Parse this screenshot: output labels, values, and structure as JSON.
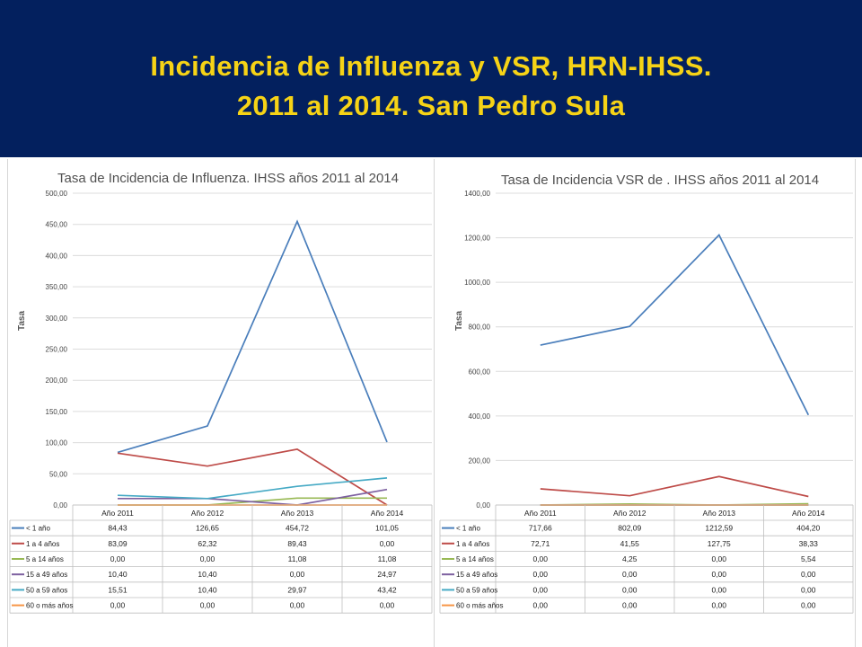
{
  "header": {
    "title_line1": "Incidencia de Influenza y VSR, HRN-IHSS.",
    "title_line2": "2011 al 2014. San Pedro Sula"
  },
  "colors": {
    "banner_bg": "#03205e",
    "title_text": "#f6d316"
  },
  "chart_data": [
    {
      "type": "line",
      "title": "Tasa de Incidencia de Influenza. IHSS años 2011 al 2014",
      "ylabel": "Tasa",
      "xlabel": "",
      "ylim": [
        0,
        500
      ],
      "yticks": [
        "0,00",
        "50,00",
        "100,00",
        "150,00",
        "200,00",
        "250,00",
        "300,00",
        "350,00",
        "400,00",
        "450,00",
        "500,00"
      ],
      "categories": [
        "Año 2011",
        "Año 2012",
        "Año 2013",
        "Año 2014"
      ],
      "grid": true,
      "legend": "data-table-below",
      "series": [
        {
          "name": "< 1 año",
          "color": "#4a7ebb",
          "values": [
            84.43,
            126.65,
            454.72,
            101.05
          ],
          "labels": [
            "84,43",
            "126,65",
            "454,72",
            "101,05"
          ]
        },
        {
          "name": "1 a 4 años",
          "color": "#be4b48",
          "values": [
            83.09,
            62.32,
            89.43,
            0.0
          ],
          "labels": [
            "83,09",
            "62,32",
            "89,43",
            "0,00"
          ]
        },
        {
          "name": "5 a 14 años",
          "color": "#98b954",
          "values": [
            0.0,
            0.0,
            11.08,
            11.08
          ],
          "labels": [
            "0,00",
            "0,00",
            "11,08",
            "11,08"
          ]
        },
        {
          "name": "15 a 49 años",
          "color": "#7d60a0",
          "values": [
            10.4,
            10.4,
            0.0,
            24.97
          ],
          "labels": [
            "10,40",
            "10,40",
            "0,00",
            "24,97"
          ]
        },
        {
          "name": "50 a 59 años",
          "color": "#46aac5",
          "values": [
            15.51,
            10.4,
            29.97,
            43.42
          ],
          "labels": [
            "15,51",
            "10,40",
            "29,97",
            "43,42"
          ]
        },
        {
          "name": "60 o más años",
          "color": "#f79646",
          "values": [
            0.0,
            0.0,
            0.0,
            0.0
          ],
          "labels": [
            "0,00",
            "0,00",
            "0,00",
            "0,00"
          ]
        }
      ]
    },
    {
      "type": "line",
      "title": "Tasa de Incidencia  VSR de . IHSS años 2011 al 2014",
      "ylabel": "Tasa",
      "xlabel": "",
      "ylim": [
        0,
        1400
      ],
      "yticks": [
        "0,00",
        "200,00",
        "400,00",
        "600,00",
        "800,00",
        "1000,00",
        "1200,00",
        "1400,00"
      ],
      "categories": [
        "Año 2011",
        "Año 2012",
        "Año 2013",
        "Año 2014"
      ],
      "grid": true,
      "legend": "data-table-below",
      "series": [
        {
          "name": "< 1 año",
          "color": "#4a7ebb",
          "values": [
            717.66,
            802.09,
            1212.59,
            404.2
          ],
          "labels": [
            "717,66",
            "802,09",
            "1212,59",
            "404,20"
          ]
        },
        {
          "name": "1 a 4 años",
          "color": "#be4b48",
          "values": [
            72.71,
            41.55,
            127.75,
            38.33
          ],
          "labels": [
            "72,71",
            "41,55",
            "127,75",
            "38,33"
          ]
        },
        {
          "name": "5 a 14 años",
          "color": "#98b954",
          "values": [
            0.0,
            4.25,
            0.0,
            5.54
          ],
          "labels": [
            "0,00",
            "4,25",
            "0,00",
            "5,54"
          ]
        },
        {
          "name": "15 a 49 años",
          "color": "#7d60a0",
          "values": [
            0.0,
            0.0,
            0.0,
            0.0
          ],
          "labels": [
            "0,00",
            "0,00",
            "0,00",
            "0,00"
          ]
        },
        {
          "name": "50 a 59 años",
          "color": "#46aac5",
          "values": [
            0.0,
            0.0,
            0.0,
            0.0
          ],
          "labels": [
            "0,00",
            "0,00",
            "0,00",
            "0,00"
          ]
        },
        {
          "name": "60 o más años",
          "color": "#f79646",
          "values": [
            0.0,
            0.0,
            0.0,
            0.0
          ],
          "labels": [
            "0,00",
            "0,00",
            "0,00",
            "0,00"
          ]
        }
      ]
    }
  ]
}
